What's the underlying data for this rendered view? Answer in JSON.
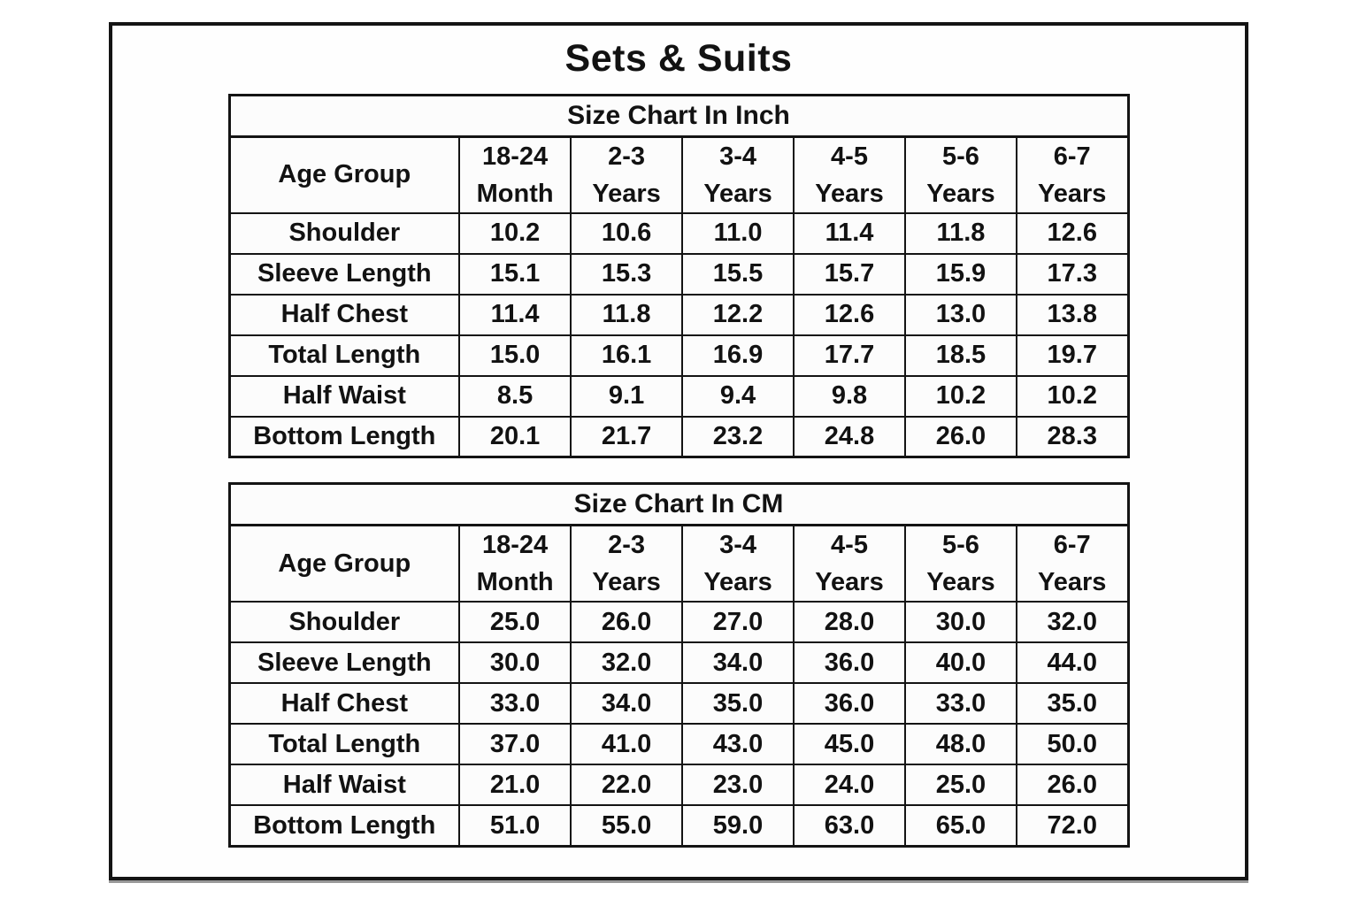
{
  "page_title": "Sets & Suits",
  "colors": {
    "text": "#121212",
    "border": "#141414",
    "background": "#ffffff"
  },
  "chart_data": [
    {
      "type": "table",
      "title": "Size Chart In Inch",
      "row_header": "Age Group",
      "categories": [
        "18-24\nMonth",
        "2-3\nYears",
        "3-4\nYears",
        "4-5\nYears",
        "5-6\nYears",
        "6-7\nYears"
      ],
      "series": [
        {
          "name": "Shoulder",
          "values": [
            10.2,
            10.6,
            11.0,
            11.4,
            11.8,
            12.6
          ]
        },
        {
          "name": "Sleeve Length",
          "values": [
            15.1,
            15.3,
            15.5,
            15.7,
            15.9,
            17.3
          ]
        },
        {
          "name": "Half Chest",
          "values": [
            11.4,
            11.8,
            12.2,
            12.6,
            13.0,
            13.8
          ]
        },
        {
          "name": "Total Length",
          "values": [
            15.0,
            16.1,
            16.9,
            17.7,
            18.5,
            19.7
          ]
        },
        {
          "name": "Half Waist",
          "values": [
            8.5,
            9.1,
            9.4,
            9.8,
            10.2,
            10.2
          ]
        },
        {
          "name": "Bottom Length",
          "values": [
            20.1,
            21.7,
            23.2,
            24.8,
            26.0,
            28.3
          ]
        }
      ]
    },
    {
      "type": "table",
      "title": "Size Chart In CM",
      "row_header": "Age Group",
      "categories": [
        "18-24\nMonth",
        "2-3\nYears",
        "3-4\nYears",
        "4-5\nYears",
        "5-6\nYears",
        "6-7\nYears"
      ],
      "series": [
        {
          "name": "Shoulder",
          "values": [
            25.0,
            26.0,
            27.0,
            28.0,
            30.0,
            32.0
          ]
        },
        {
          "name": "Sleeve Length",
          "values": [
            30.0,
            32.0,
            34.0,
            36.0,
            40.0,
            44.0
          ]
        },
        {
          "name": "Half Chest",
          "values": [
            33.0,
            34.0,
            35.0,
            36.0,
            33.0,
            35.0
          ]
        },
        {
          "name": "Total Length",
          "values": [
            37.0,
            41.0,
            43.0,
            45.0,
            48.0,
            50.0
          ]
        },
        {
          "name": "Half Waist",
          "values": [
            21.0,
            22.0,
            23.0,
            24.0,
            25.0,
            26.0
          ]
        },
        {
          "name": "Bottom Length",
          "values": [
            51.0,
            55.0,
            59.0,
            63.0,
            65.0,
            72.0
          ]
        }
      ]
    }
  ]
}
